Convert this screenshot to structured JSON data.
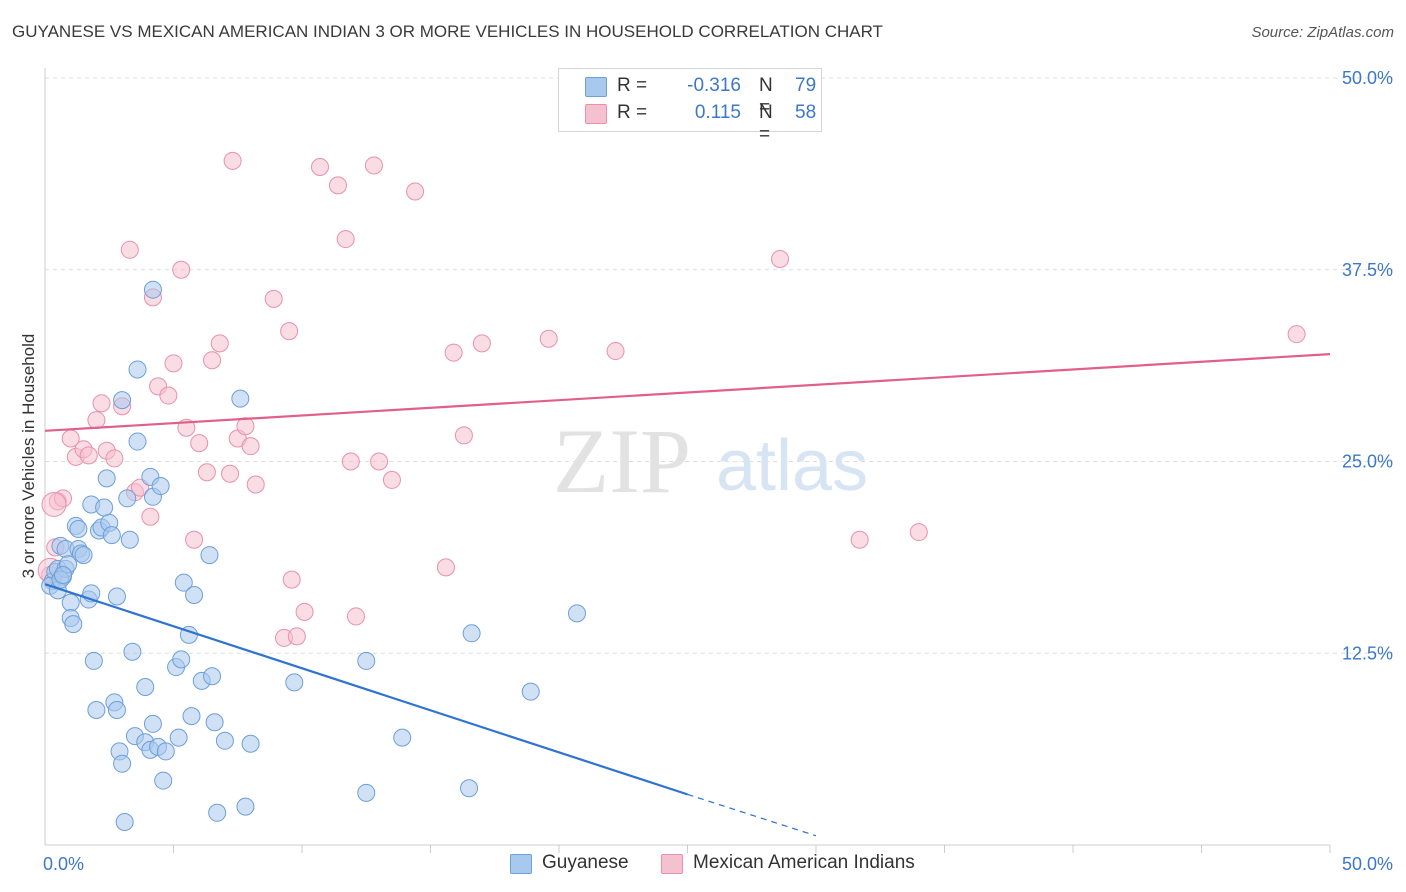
{
  "title": "GUYANESE VS MEXICAN AMERICAN INDIAN 3 OR MORE VEHICLES IN HOUSEHOLD CORRELATION CHART",
  "source": "Source: ZipAtlas.com",
  "watermark": {
    "zip": "ZIP",
    "atlas": "atlas"
  },
  "legend_top": {
    "rows": [
      {
        "r_label": "R = ",
        "r_value": "-0.316",
        "n_label": "N = ",
        "n_value": "79"
      },
      {
        "r_label": "R = ",
        "r_value": "0.115",
        "n_label": "N = ",
        "n_value": "58"
      }
    ]
  },
  "legend_bottom": {
    "items": [
      "Guyanese",
      "Mexican American Indians"
    ]
  },
  "colors": {
    "blue_fill": "#a9c8ee",
    "blue_stroke": "#6d9fd8",
    "blue_line": "#2f74d0",
    "pink_fill": "#f5c0d0",
    "pink_stroke": "#e891ad",
    "pink_line": "#e0608a",
    "tick_label": "#3b78c8",
    "grid": "#dddddd"
  },
  "chart_data": {
    "type": "scatter",
    "title": "GUYANESE VS MEXICAN AMERICAN INDIAN 3 OR MORE VEHICLES IN HOUSEHOLD CORRELATION CHART",
    "xlabel": "",
    "ylabel": "3 or more Vehicles in Household",
    "xlim": [
      0,
      50
    ],
    "ylim": [
      0,
      50
    ],
    "x_tick_labels": [
      "0.0%",
      "50.0%"
    ],
    "y_ticks": [
      12.5,
      25.0,
      37.5,
      50.0
    ],
    "y_tick_labels": [
      "12.5%",
      "25.0%",
      "37.5%",
      "50.0%"
    ],
    "grid": "horizontal dashed",
    "legend_position": "top-center",
    "series": [
      {
        "name": "Guyanese",
        "r": -0.316,
        "n": 79,
        "trend": {
          "x0": 0,
          "y0": 17.0,
          "x1": 25,
          "y1": 3.3,
          "dashed_to_x": 30,
          "dashed_to_y": 0.6
        },
        "points": [
          [
            0.3,
            17.2
          ],
          [
            0.4,
            17.8
          ],
          [
            0.5,
            18.0
          ],
          [
            0.6,
            19.5
          ],
          [
            0.7,
            17.5
          ],
          [
            0.8,
            18.0
          ],
          [
            0.8,
            19.3
          ],
          [
            0.9,
            18.3
          ],
          [
            1.0,
            15.8
          ],
          [
            1.0,
            14.8
          ],
          [
            1.1,
            14.4
          ],
          [
            1.2,
            20.8
          ],
          [
            1.3,
            20.6
          ],
          [
            1.3,
            19.3
          ],
          [
            1.4,
            19.0
          ],
          [
            1.5,
            18.9
          ],
          [
            1.7,
            16.0
          ],
          [
            1.8,
            22.2
          ],
          [
            1.8,
            16.4
          ],
          [
            1.9,
            12.0
          ],
          [
            2.0,
            8.8
          ],
          [
            2.1,
            20.5
          ],
          [
            2.2,
            20.7
          ],
          [
            2.3,
            22.0
          ],
          [
            2.4,
            23.9
          ],
          [
            2.5,
            21.0
          ],
          [
            2.6,
            20.2
          ],
          [
            2.7,
            9.3
          ],
          [
            2.8,
            8.8
          ],
          [
            2.8,
            16.2
          ],
          [
            2.9,
            6.1
          ],
          [
            3.0,
            5.3
          ],
          [
            3.0,
            29.0
          ],
          [
            3.1,
            1.5
          ],
          [
            3.2,
            22.6
          ],
          [
            3.3,
            19.9
          ],
          [
            3.4,
            12.6
          ],
          [
            3.5,
            7.1
          ],
          [
            3.6,
            26.3
          ],
          [
            3.6,
            31.0
          ],
          [
            3.9,
            6.7
          ],
          [
            3.9,
            10.3
          ],
          [
            4.1,
            6.2
          ],
          [
            4.1,
            24.0
          ],
          [
            4.2,
            36.2
          ],
          [
            4.2,
            7.9
          ],
          [
            4.2,
            22.7
          ],
          [
            4.4,
            6.4
          ],
          [
            4.5,
            23.4
          ],
          [
            4.6,
            4.2
          ],
          [
            4.7,
            6.1
          ],
          [
            5.1,
            11.6
          ],
          [
            5.2,
            7.0
          ],
          [
            5.3,
            12.1
          ],
          [
            5.4,
            17.1
          ],
          [
            5.6,
            13.7
          ],
          [
            5.7,
            8.4
          ],
          [
            5.8,
            16.3
          ],
          [
            6.1,
            10.7
          ],
          [
            6.4,
            18.9
          ],
          [
            6.5,
            11.0
          ],
          [
            6.6,
            8.0
          ],
          [
            6.7,
            2.1
          ],
          [
            7.0,
            6.8
          ],
          [
            7.6,
            29.1
          ],
          [
            7.8,
            2.5
          ],
          [
            8.0,
            6.6
          ],
          [
            9.7,
            10.6
          ],
          [
            12.5,
            12.0
          ],
          [
            12.5,
            3.4
          ],
          [
            13.9,
            7.0
          ],
          [
            16.5,
            3.7
          ],
          [
            16.6,
            13.8
          ],
          [
            18.9,
            10.0
          ],
          [
            20.7,
            15.1
          ],
          [
            0.2,
            16.9
          ],
          [
            0.5,
            16.6
          ],
          [
            0.6,
            17.3
          ],
          [
            0.7,
            17.6
          ]
        ]
      },
      {
        "name": "Mexican American Indians",
        "r": 0.115,
        "n": 58,
        "trend": {
          "x0": 0,
          "y0": 27.0,
          "x1": 50,
          "y1": 32.0
        },
        "points": [
          [
            0.2,
            17.6
          ],
          [
            0.4,
            19.4
          ],
          [
            0.5,
            22.4
          ],
          [
            0.7,
            22.6
          ],
          [
            1.0,
            26.5
          ],
          [
            1.2,
            25.3
          ],
          [
            1.5,
            25.8
          ],
          [
            1.7,
            25.4
          ],
          [
            2.0,
            27.7
          ],
          [
            2.2,
            28.8
          ],
          [
            2.4,
            25.7
          ],
          [
            2.7,
            25.2
          ],
          [
            3.0,
            28.6
          ],
          [
            3.3,
            38.8
          ],
          [
            3.5,
            23.0
          ],
          [
            3.7,
            23.3
          ],
          [
            4.1,
            21.4
          ],
          [
            4.2,
            35.7
          ],
          [
            4.4,
            29.9
          ],
          [
            4.8,
            29.3
          ],
          [
            5.0,
            31.4
          ],
          [
            5.3,
            37.5
          ],
          [
            5.5,
            27.2
          ],
          [
            5.8,
            19.9
          ],
          [
            6.0,
            26.2
          ],
          [
            6.3,
            24.3
          ],
          [
            6.5,
            31.6
          ],
          [
            6.8,
            32.7
          ],
          [
            7.2,
            24.2
          ],
          [
            7.3,
            44.6
          ],
          [
            7.5,
            26.5
          ],
          [
            7.8,
            27.3
          ],
          [
            8.0,
            26.0
          ],
          [
            8.2,
            23.5
          ],
          [
            8.9,
            35.6
          ],
          [
            9.3,
            13.5
          ],
          [
            9.5,
            33.5
          ],
          [
            9.6,
            17.3
          ],
          [
            9.8,
            13.6
          ],
          [
            10.1,
            15.2
          ],
          [
            10.7,
            44.2
          ],
          [
            11.4,
            43.0
          ],
          [
            11.7,
            39.5
          ],
          [
            11.9,
            25.0
          ],
          [
            12.1,
            14.9
          ],
          [
            12.8,
            44.3
          ],
          [
            13.0,
            25.0
          ],
          [
            13.5,
            23.8
          ],
          [
            14.4,
            42.6
          ],
          [
            15.6,
            18.1
          ],
          [
            15.9,
            32.1
          ],
          [
            16.3,
            26.7
          ],
          [
            17.0,
            32.7
          ],
          [
            19.6,
            33.0
          ],
          [
            22.2,
            32.2
          ],
          [
            28.6,
            38.2
          ],
          [
            31.7,
            19.9
          ],
          [
            34.0,
            20.4
          ]
        ]
      }
    ],
    "extra_point": {
      "series": "Mexican American Indians",
      "x": 48.7,
      "y": 33.3
    }
  }
}
